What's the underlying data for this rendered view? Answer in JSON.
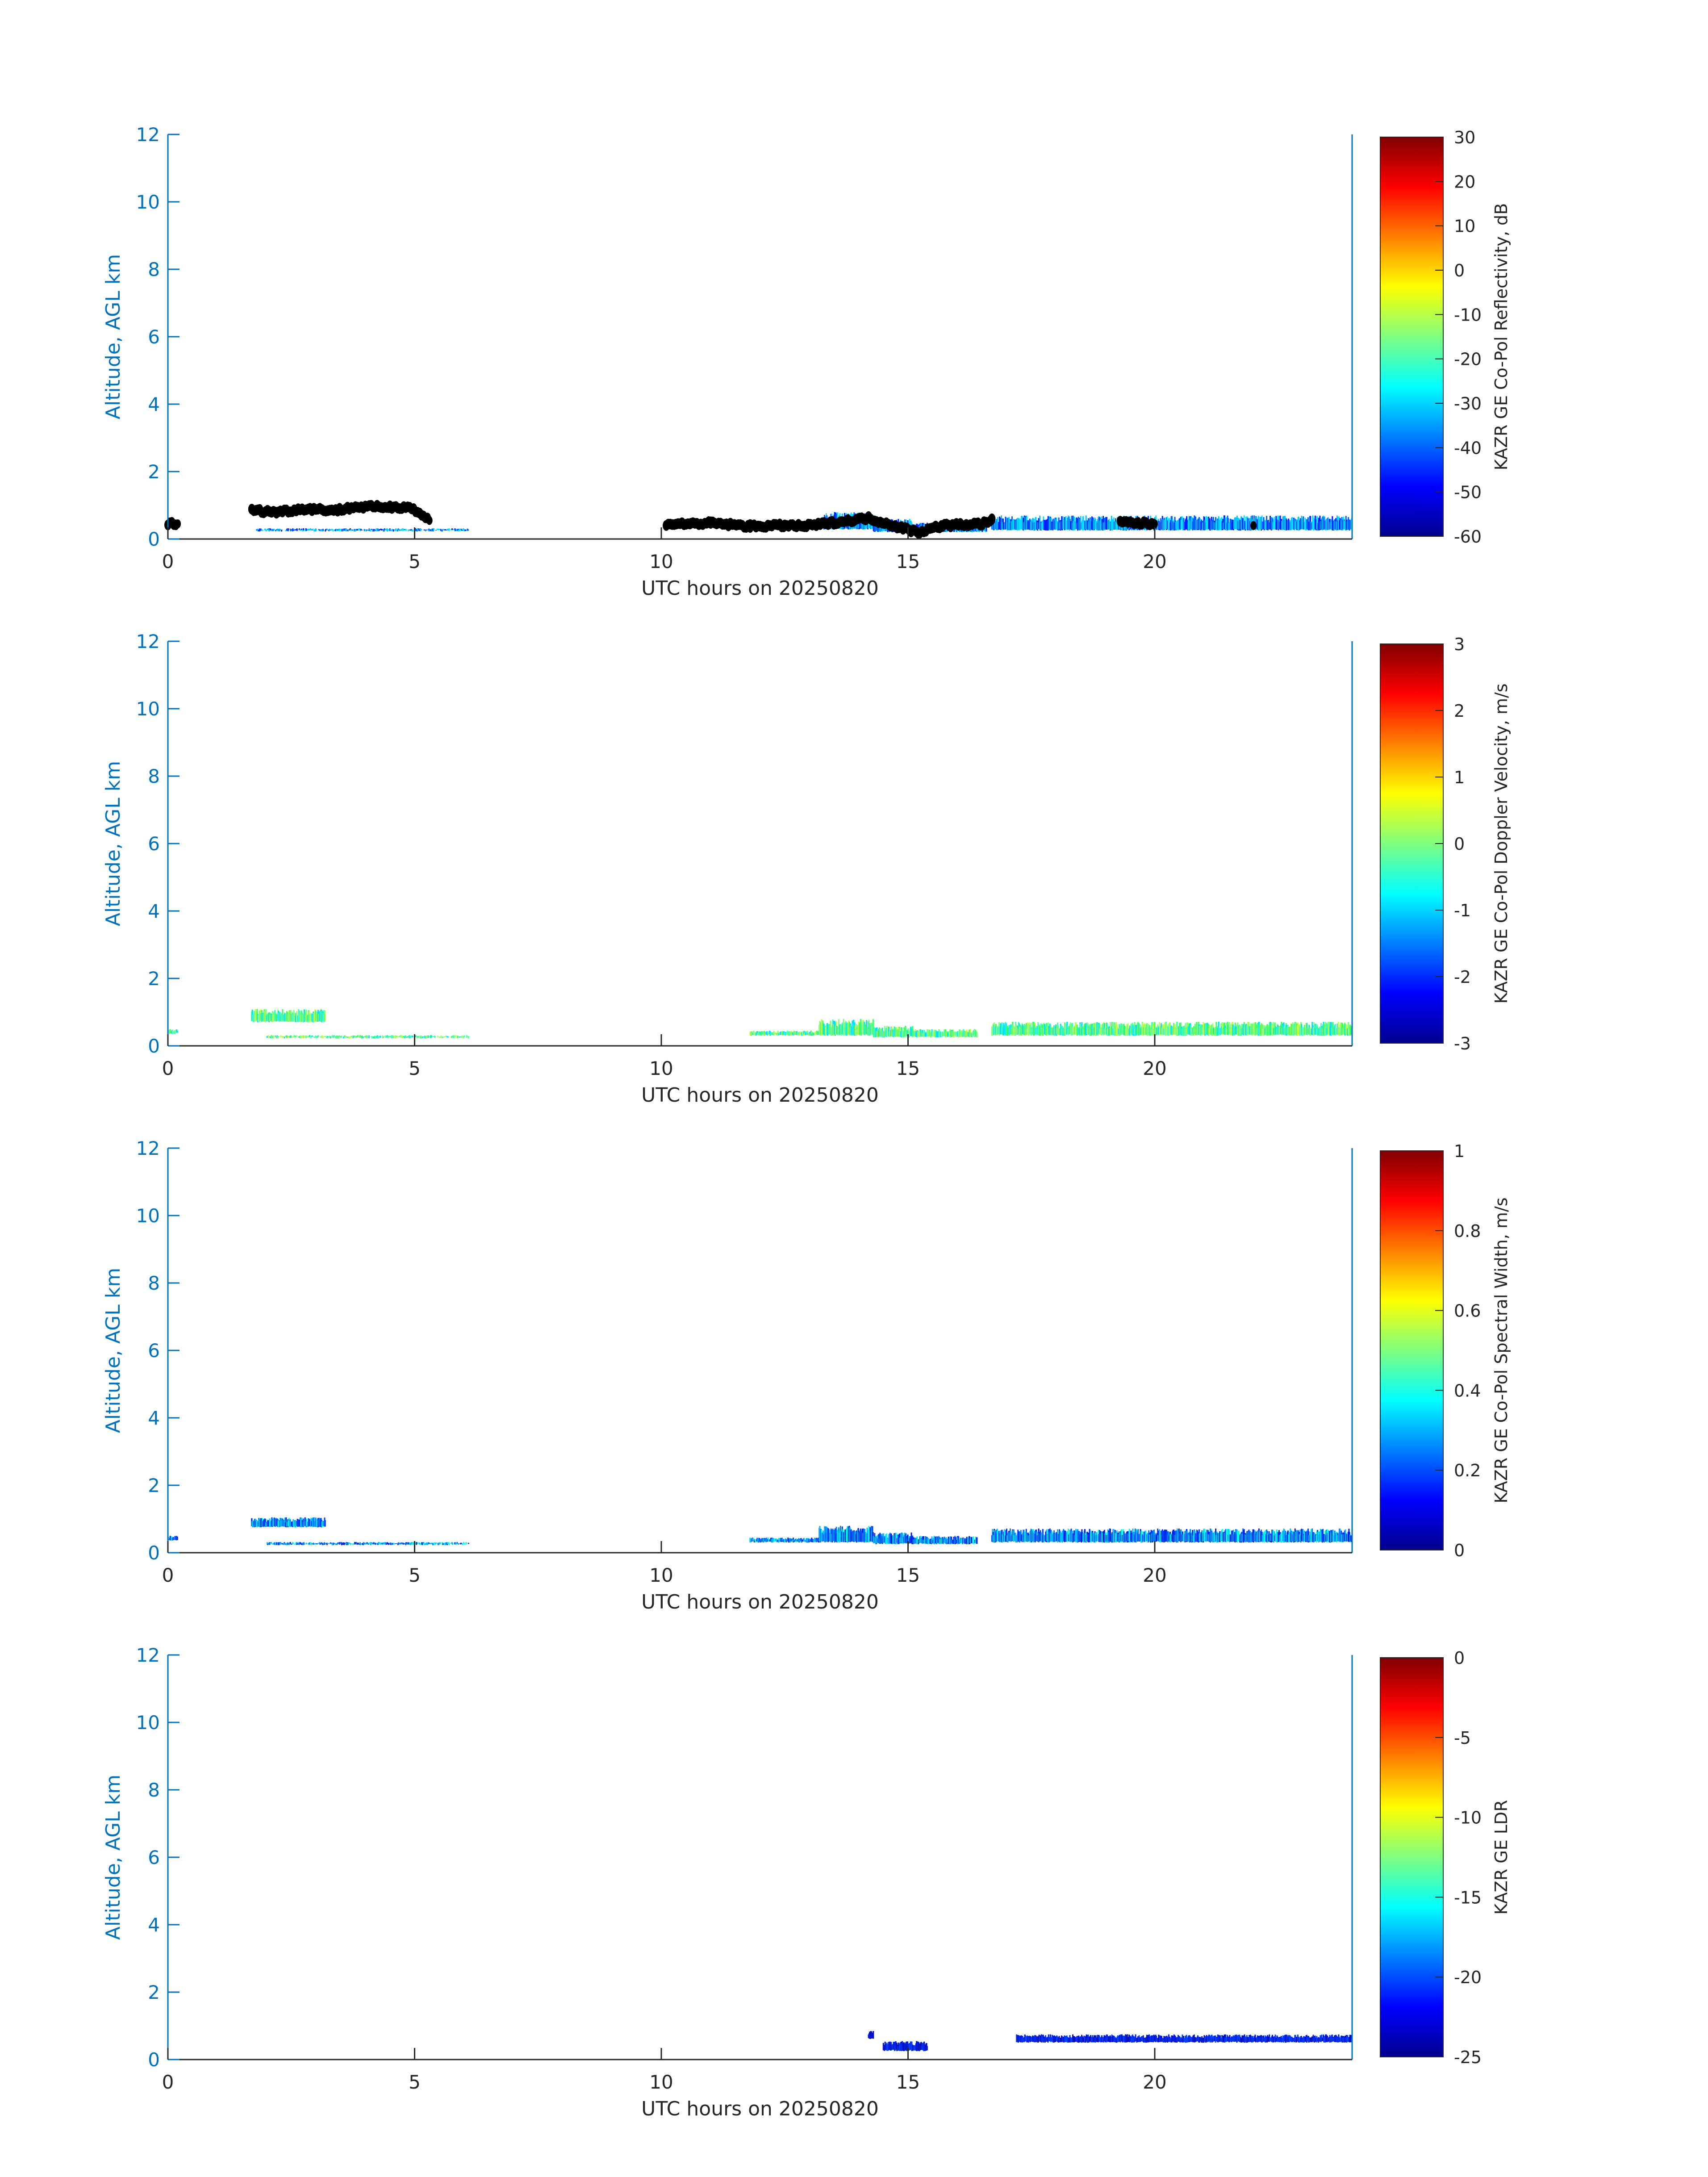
{
  "axis_color": "#0072BD",
  "chart_data": [
    {
      "type": "heatmap",
      "xlabel": "UTC hours on 20250820",
      "ylabel": "Altitude, AGL km",
      "xlim": [
        0,
        24
      ],
      "ylim": [
        0,
        12
      ],
      "xticks": [
        "0",
        "5",
        "10",
        "15",
        "20"
      ],
      "yticks": [
        "0",
        "2",
        "4",
        "6",
        "8",
        "10",
        "12"
      ],
      "colorbar": {
        "label": "KAZR GE Co-Pol Reflectivity, dB",
        "range": [
          -60,
          30
        ],
        "ticks": [
          "-60",
          "-50",
          "-40",
          "-30",
          "-20",
          "-10",
          "0",
          "10",
          "20",
          "30"
        ]
      },
      "echo_palette": [
        "#00e8ff",
        "#00c8ff",
        "#0060ff",
        "#0020ff"
      ],
      "echo_segments": [
        [
          0,
          0.2,
          0.35,
          0.5
        ],
        [
          1.8,
          6.1,
          0.22,
          0.32
        ],
        [
          13.2,
          14.3,
          0.28,
          0.8
        ],
        [
          14.3,
          15.1,
          0.2,
          0.6
        ],
        [
          15.1,
          16.6,
          0.2,
          0.5
        ],
        [
          16.7,
          24,
          0.25,
          0.7
        ]
      ],
      "cloud_base_points": [
        [
          0,
          0.45
        ],
        [
          0.2,
          0.45
        ],
        [
          1.7,
          0.85
        ],
        [
          2.2,
          0.8
        ],
        [
          2.8,
          0.9
        ],
        [
          3.4,
          0.85
        ],
        [
          3.8,
          0.95
        ],
        [
          4.5,
          0.95
        ],
        [
          4.9,
          0.95
        ],
        [
          5.3,
          0.55
        ],
        [
          10.1,
          0.45
        ],
        [
          10.6,
          0.45
        ],
        [
          11,
          0.47
        ],
        [
          11.8,
          0.38
        ],
        [
          12.5,
          0.4
        ],
        [
          12.9,
          0.38
        ],
        [
          13.3,
          0.45
        ],
        [
          14.2,
          0.62
        ],
        [
          14.7,
          0.4
        ],
        [
          15.2,
          0.2
        ],
        [
          15.7,
          0.4
        ],
        [
          16.5,
          0.45
        ],
        [
          16.7,
          0.55
        ],
        [
          19.3,
          0.5
        ],
        [
          20,
          0.45
        ],
        [
          22,
          0.4
        ],
        [
          24,
          0.4
        ]
      ]
    },
    {
      "type": "heatmap",
      "xlabel": "UTC hours on 20250820",
      "ylabel": "Altitude, AGL km",
      "xlim": [
        0,
        24
      ],
      "ylim": [
        0,
        12
      ],
      "xticks": [
        "0",
        "5",
        "10",
        "15",
        "20"
      ],
      "yticks": [
        "0",
        "2",
        "4",
        "6",
        "8",
        "10",
        "12"
      ],
      "colorbar": {
        "label": "KAZR GE Co-Pol Doppler Velocity, m/s",
        "range": [
          -3,
          3
        ],
        "ticks": [
          "-3",
          "-2",
          "-1",
          "0",
          "1",
          "2",
          "3"
        ]
      },
      "echo_palette": [
        "#80ff80",
        "#40ffc0",
        "#00e0ff",
        "#c0ff40",
        "#40ff60"
      ],
      "echo_segments": [
        [
          0,
          0.2,
          0.35,
          0.5
        ],
        [
          1.7,
          3.2,
          0.7,
          1.1
        ],
        [
          2,
          6.1,
          0.22,
          0.32
        ],
        [
          11.8,
          13.2,
          0.3,
          0.45
        ],
        [
          13.2,
          14.3,
          0.3,
          0.8
        ],
        [
          14.3,
          15.1,
          0.25,
          0.6
        ],
        [
          15.1,
          16.4,
          0.25,
          0.5
        ],
        [
          16.7,
          24,
          0.3,
          0.72
        ]
      ],
      "cloud_base_points": []
    },
    {
      "type": "heatmap",
      "xlabel": "UTC hours on 20250820",
      "ylabel": "Altitude, AGL km",
      "xlim": [
        0,
        24
      ],
      "ylim": [
        0,
        12
      ],
      "xticks": [
        "0",
        "5",
        "10",
        "15",
        "20"
      ],
      "yticks": [
        "0",
        "2",
        "4",
        "6",
        "8",
        "10",
        "12"
      ],
      "colorbar": {
        "label": "KAZR GE Co-Pol Spectral Width, m/s",
        "range": [
          0,
          1
        ],
        "ticks": [
          "0",
          "0.2",
          "0.4",
          "0.6",
          "0.8",
          "1"
        ]
      },
      "echo_palette": [
        "#0040ff",
        "#0080ff",
        "#00c0ff",
        "#00ffe0",
        "#0020e0"
      ],
      "echo_segments": [
        [
          0,
          0.2,
          0.35,
          0.5
        ],
        [
          1.7,
          3.2,
          0.75,
          1.05
        ],
        [
          2,
          6.1,
          0.22,
          0.32
        ],
        [
          11.8,
          13.2,
          0.3,
          0.45
        ],
        [
          13.2,
          14.3,
          0.3,
          0.8
        ],
        [
          14.3,
          15.1,
          0.25,
          0.6
        ],
        [
          15.1,
          16.4,
          0.25,
          0.5
        ],
        [
          16.7,
          24,
          0.3,
          0.72
        ]
      ],
      "cloud_base_points": []
    },
    {
      "type": "heatmap",
      "xlabel": "UTC hours on 20250820",
      "ylabel": "Altitude, AGL km",
      "xlim": [
        0,
        24
      ],
      "ylim": [
        0,
        12
      ],
      "xticks": [
        "0",
        "5",
        "10",
        "15",
        "20"
      ],
      "yticks": [
        "0",
        "2",
        "4",
        "6",
        "8",
        "10",
        "12"
      ],
      "colorbar": {
        "label": "KAZR GE LDR",
        "range": [
          -25,
          0
        ],
        "ticks": [
          "-25",
          "-20",
          "-15",
          "-10",
          "-5",
          "0"
        ]
      },
      "echo_palette": [
        "#0020e0",
        "#0040ff",
        "#0010c0"
      ],
      "echo_segments": [
        [
          14.2,
          14.3,
          0.6,
          0.85
        ],
        [
          14.5,
          15.4,
          0.25,
          0.55
        ],
        [
          17.2,
          24,
          0.5,
          0.75
        ]
      ],
      "cloud_base_points": []
    }
  ]
}
